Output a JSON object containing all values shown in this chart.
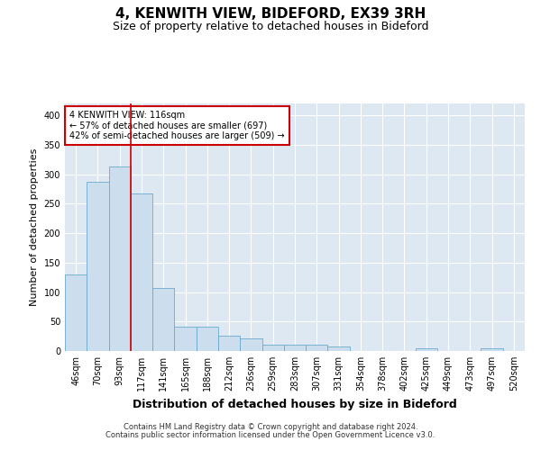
{
  "title": "4, KENWITH VIEW, BIDEFORD, EX39 3RH",
  "subtitle": "Size of property relative to detached houses in Bideford",
  "xlabel": "Distribution of detached houses by size in Bideford",
  "ylabel": "Number of detached properties",
  "footer_line1": "Contains HM Land Registry data © Crown copyright and database right 2024.",
  "footer_line2": "Contains public sector information licensed under the Open Government Licence v3.0.",
  "bar_labels": [
    "46sqm",
    "70sqm",
    "93sqm",
    "117sqm",
    "141sqm",
    "165sqm",
    "188sqm",
    "212sqm",
    "236sqm",
    "259sqm",
    "283sqm",
    "307sqm",
    "331sqm",
    "354sqm",
    "378sqm",
    "402sqm",
    "425sqm",
    "449sqm",
    "473sqm",
    "497sqm",
    "520sqm"
  ],
  "bar_values": [
    130,
    287,
    313,
    267,
    107,
    42,
    42,
    26,
    21,
    11,
    10,
    10,
    8,
    0,
    0,
    0,
    5,
    0,
    0,
    5,
    0
  ],
  "bar_color": "#ccdded",
  "bar_edge_color": "#6aaace",
  "annotation_text": "4 KENWITH VIEW: 116sqm\n← 57% of detached houses are smaller (697)\n42% of semi-detached houses are larger (509) →",
  "annotation_box_color": "white",
  "annotation_box_edge_color": "#cc0000",
  "vline_color": "#cc0000",
  "vline_pos": 2.5,
  "ylim": [
    0,
    420
  ],
  "yticks": [
    0,
    50,
    100,
    150,
    200,
    250,
    300,
    350,
    400
  ],
  "background_color": "#dde8f3",
  "title_fontsize": 11,
  "subtitle_fontsize": 9,
  "ylabel_fontsize": 8,
  "xlabel_fontsize": 9,
  "tick_fontsize": 7,
  "footer_fontsize": 6,
  "annotation_fontsize": 7
}
